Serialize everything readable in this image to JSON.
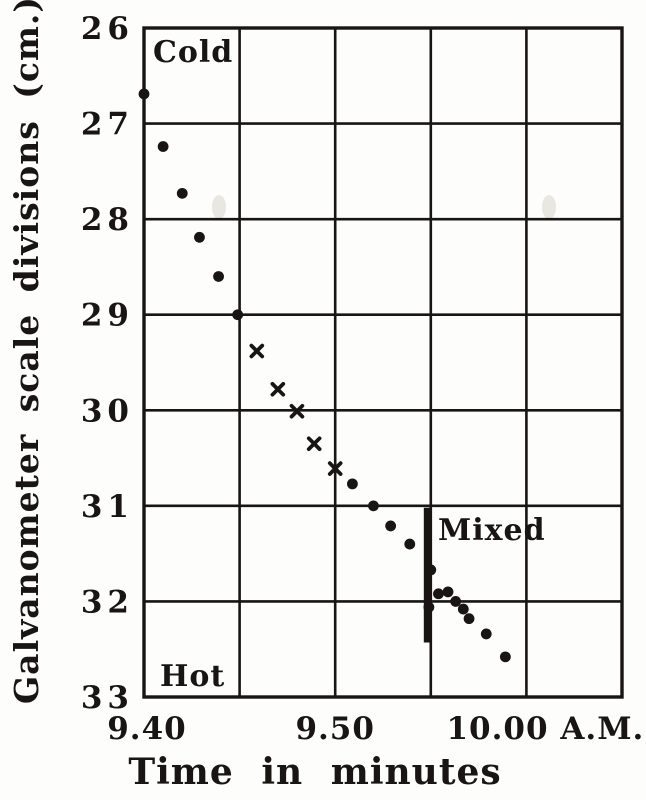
{
  "colors": {
    "ink": "#181512",
    "paper": "#fdfdfb",
    "smudge": "#e9e7e2"
  },
  "chart_data": {
    "type": "scatter",
    "title": "",
    "xlabel": "Time in minutes",
    "ylabel": "Galvanometer scale divisions (cm.)",
    "x_axis": {
      "unit": "clock time, A.M.",
      "minutes_range": [
        0,
        25
      ],
      "minutes_origin_label": "9.40",
      "gridlines_minutes": [
        0,
        5,
        10,
        15,
        20,
        25
      ],
      "tick_labels": [
        {
          "minutes": 0,
          "label": "9.40",
          "dx": 3
        },
        {
          "minutes": 10,
          "label": "9.50",
          "dx": 0
        },
        {
          "minutes": 20,
          "label": "10.00 A.M.",
          "dx": 19
        }
      ]
    },
    "y_axis": {
      "range": [
        26,
        33
      ],
      "inverted_top_to_bottom": true,
      "gridlines": [
        26,
        27,
        28,
        29,
        30,
        31,
        32,
        33
      ],
      "tick_labels": [
        "26",
        "27",
        "28",
        "29",
        "30",
        "31",
        "32",
        "33"
      ]
    },
    "annotations": {
      "cold": "Cold",
      "hot": "Hot",
      "mixed": "Mixed"
    },
    "mixing_marker_line": {
      "minutes": 14.83,
      "value_from": 31.02,
      "value_to": 32.43
    },
    "series": [
      {
        "name": "galvanometer-readings-dots-early",
        "marker": "dot",
        "points": [
          [
            0.0,
            26.69
          ],
          [
            1.0,
            27.24
          ],
          [
            2.0,
            27.73
          ],
          [
            2.9,
            28.19
          ],
          [
            3.9,
            28.6
          ],
          [
            4.9,
            29.0
          ]
        ]
      },
      {
        "name": "galvanometer-readings-crosses",
        "marker": "x",
        "points": [
          [
            5.9,
            29.38
          ],
          [
            7.0,
            29.78
          ],
          [
            8.0,
            30.01
          ],
          [
            8.9,
            30.35
          ],
          [
            10.0,
            30.61
          ]
        ]
      },
      {
        "name": "galvanometer-readings-dots-late",
        "marker": "dot",
        "points": [
          [
            10.9,
            30.77
          ],
          [
            12.0,
            31.0
          ],
          [
            12.9,
            31.21
          ],
          [
            13.9,
            31.4
          ],
          [
            15.0,
            31.67
          ],
          [
            14.9,
            32.06
          ],
          [
            15.4,
            31.92
          ],
          [
            15.9,
            31.9
          ],
          [
            16.3,
            32.0
          ],
          [
            16.7,
            32.08
          ],
          [
            17.0,
            32.18
          ],
          [
            17.9,
            32.34
          ],
          [
            18.9,
            32.58
          ]
        ]
      }
    ]
  }
}
